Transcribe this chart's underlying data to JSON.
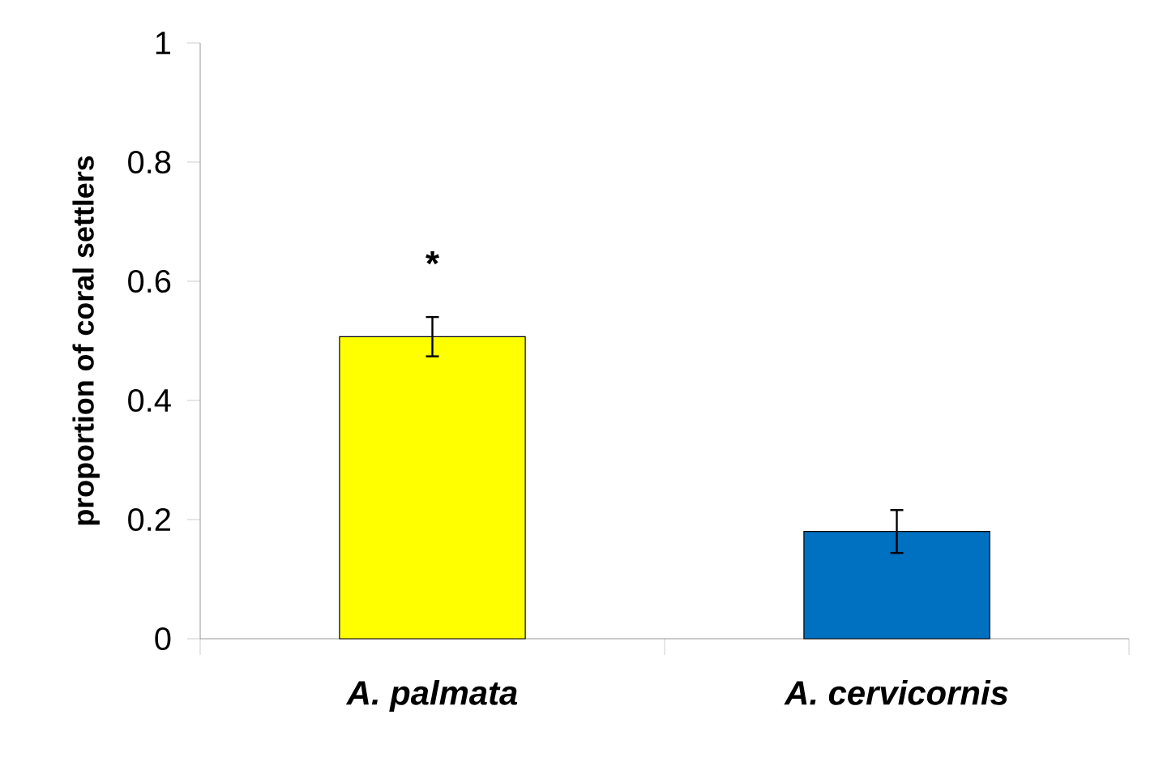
{
  "chart_data": {
    "type": "bar",
    "ylabel": "proportion of coral settlers",
    "categories": [
      "A. palmata",
      "A. cervicornis"
    ],
    "values": [
      0.507,
      0.18
    ],
    "errors": [
      0.033,
      0.036
    ],
    "colors": [
      "#ffff00",
      "#0070c0"
    ],
    "ylim": [
      0,
      1
    ],
    "yticks": [
      0,
      0.2,
      0.4,
      0.6,
      0.8,
      1
    ],
    "annotations": [
      "*"
    ]
  }
}
